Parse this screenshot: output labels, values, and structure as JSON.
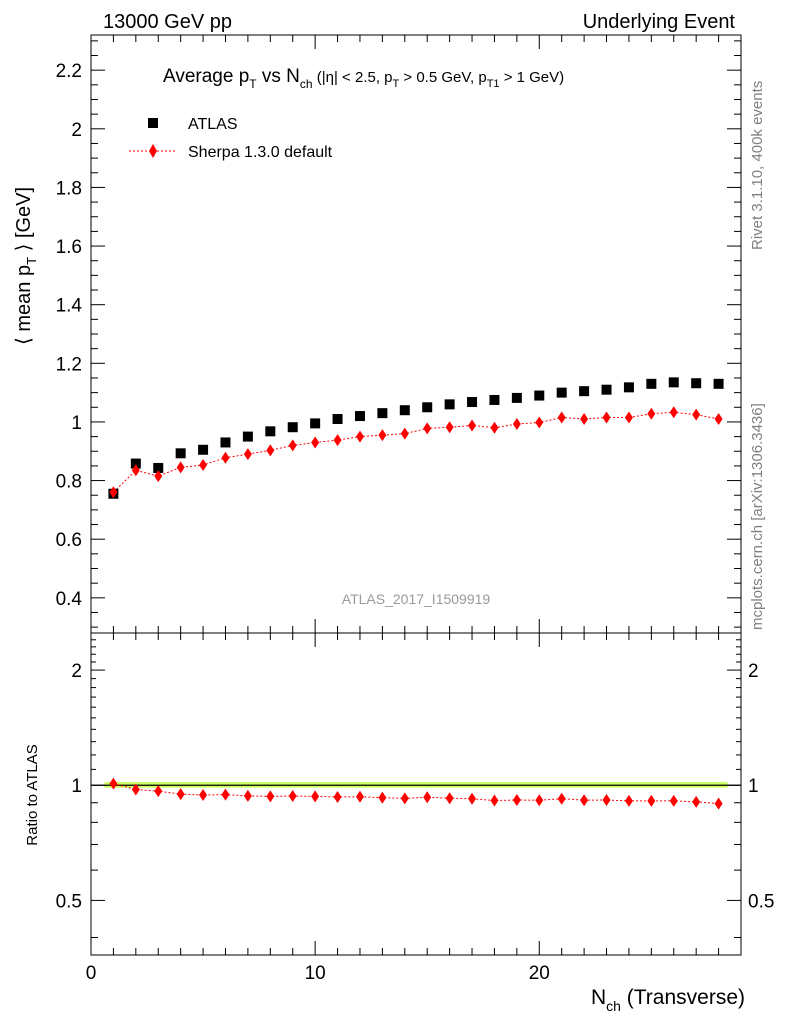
{
  "header": {
    "left": "13000 GeV pp",
    "right": "Underlying Event"
  },
  "side_labels": {
    "rivet": "Rivet 3.1.10,  400k events",
    "mcplots": "mcplots.cern.ch [arXiv:1306.3436]"
  },
  "main_plot": {
    "title_parts": {
      "a": "Average p",
      "a_sub": "T",
      "b": " vs N",
      "b_sub": "ch",
      "c": " (|η| < 2.5, p",
      "c_sub": "T",
      "d": " > 0.5 GeV, p",
      "d_sub": "T1",
      "e": " > 1 GeV)"
    },
    "ylabel_parts": {
      "a": "⟨ mean p",
      "sub": "T",
      "b": " ⟩ [GeV]"
    },
    "watermark": "ATLAS_2017_I1509919",
    "legend": {
      "atlas": "ATLAS",
      "sherpa": "Sherpa 1.3.0 default"
    }
  },
  "ratio_plot": {
    "ylabel": "Ratio to ATLAS"
  },
  "xaxis": {
    "label_main": "N",
    "label_sub": "ch",
    "label_tail": " (Transverse)"
  },
  "colors": {
    "atlas": "#000000",
    "sherpa": "#ff0000",
    "band": "#ccff66",
    "side_text": "#808080"
  },
  "chart_data": {
    "type": "scatter",
    "x": [
      1,
      2,
      3,
      4,
      5,
      6,
      7,
      8,
      9,
      10,
      11,
      12,
      13,
      14,
      15,
      16,
      17,
      18,
      19,
      20,
      21,
      22,
      23,
      24,
      25,
      26,
      27,
      28
    ],
    "series": [
      {
        "name": "ATLAS",
        "marker": "square",
        "values": [
          0.755,
          0.858,
          0.843,
          0.893,
          0.905,
          0.93,
          0.95,
          0.968,
          0.982,
          0.995,
          1.01,
          1.02,
          1.03,
          1.04,
          1.05,
          1.06,
          1.068,
          1.075,
          1.082,
          1.09,
          1.1,
          1.105,
          1.11,
          1.118,
          1.13,
          1.135,
          1.132,
          1.13
        ]
      },
      {
        "name": "Sherpa 1.3.0 default",
        "marker": "diamond",
        "values": [
          0.76,
          0.835,
          0.815,
          0.845,
          0.853,
          0.878,
          0.89,
          0.903,
          0.92,
          0.93,
          0.938,
          0.95,
          0.955,
          0.96,
          0.978,
          0.982,
          0.988,
          0.98,
          0.993,
          0.998,
          1.015,
          1.01,
          1.015,
          1.015,
          1.028,
          1.033,
          1.025,
          1.01
        ]
      }
    ],
    "ratio": {
      "name": "Sherpa 1.3.0 default",
      "values": [
        1.01,
        0.975,
        0.965,
        0.948,
        0.943,
        0.945,
        0.938,
        0.935,
        0.937,
        0.935,
        0.932,
        0.933,
        0.928,
        0.924,
        0.93,
        0.925,
        0.922,
        0.912,
        0.915,
        0.914,
        0.922,
        0.914,
        0.915,
        0.91,
        0.91,
        0.91,
        0.905,
        0.895
      ]
    },
    "xlim": [
      0,
      29
    ],
    "ylim": [
      0.28,
      2.32
    ],
    "ratio_ylim": [
      0.36,
      2.5
    ],
    "ratio_log_scale": true,
    "yticks": [
      "0.4",
      "0.6",
      "0.8",
      "1",
      "1.2",
      "1.4",
      "1.6",
      "1.8",
      "2",
      "2.2"
    ],
    "ratio_yticks": [
      "0.5",
      "1",
      "2"
    ],
    "xticks": [
      "0",
      "10",
      "20"
    ],
    "legend_position": "top-left",
    "grid": false
  }
}
